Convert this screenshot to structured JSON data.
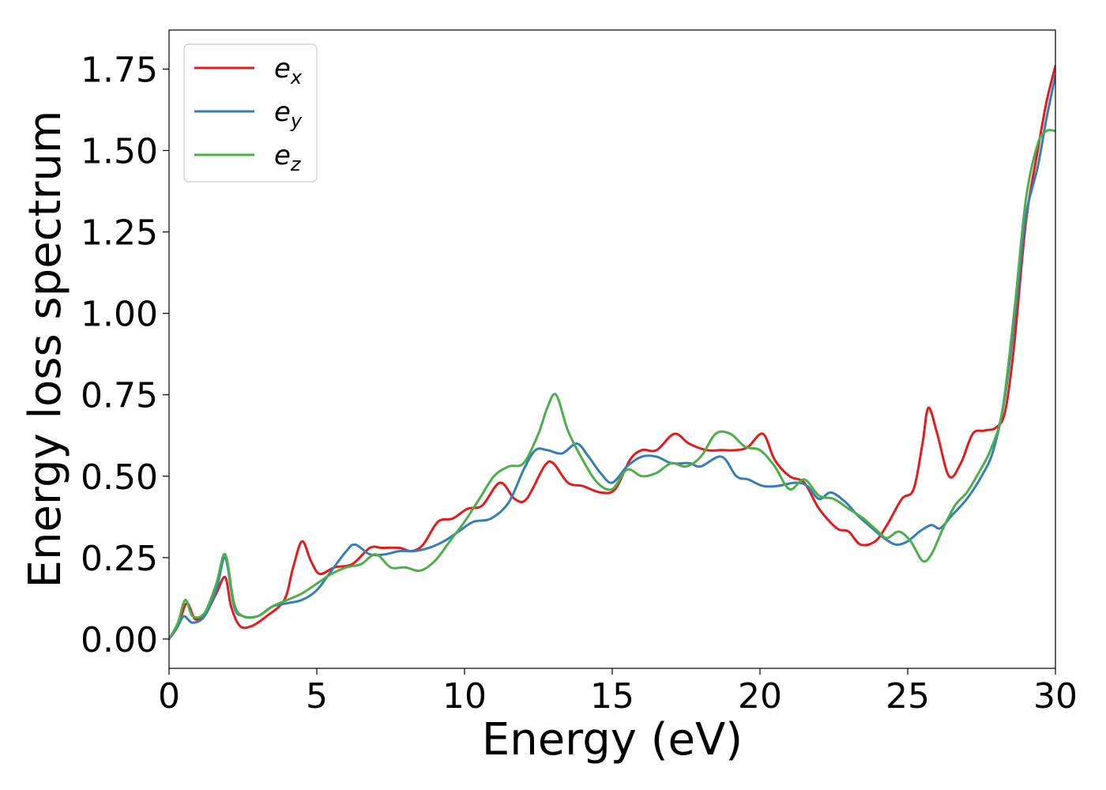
{
  "chart_data": {
    "type": "line",
    "title": "",
    "xlabel": "Energy (eV)",
    "ylabel": "Energy loss spectrum",
    "xlim": [
      0,
      30
    ],
    "ylim": [
      -0.09,
      1.87
    ],
    "xticks": [
      0,
      5,
      10,
      15,
      20,
      25,
      30
    ],
    "xtick_labels": [
      "0",
      "5",
      "10",
      "15",
      "20",
      "25",
      "30"
    ],
    "yticks": [
      0.0,
      0.25,
      0.5,
      0.75,
      1.0,
      1.25,
      1.5,
      1.75
    ],
    "ytick_labels": [
      "0.00",
      "0.25",
      "0.50",
      "0.75",
      "1.00",
      "1.25",
      "1.50",
      "1.75"
    ],
    "grid": false,
    "legend": "top-left",
    "series": [
      {
        "name": "e",
        "subscript": "x",
        "color": "#e41a1c",
        "points": [
          [
            0,
            0
          ],
          [
            0.3,
            0.04
          ],
          [
            0.6,
            0.11
          ],
          [
            0.9,
            0.06
          ],
          [
            1.3,
            0.09
          ],
          [
            1.6,
            0.14
          ],
          [
            1.9,
            0.19
          ],
          [
            2.1,
            0.1
          ],
          [
            2.4,
            0.04
          ],
          [
            2.8,
            0.04
          ],
          [
            3.3,
            0.07
          ],
          [
            3.9,
            0.12
          ],
          [
            4.2,
            0.22
          ],
          [
            4.5,
            0.3
          ],
          [
            4.8,
            0.24
          ],
          [
            5.1,
            0.2
          ],
          [
            5.6,
            0.22
          ],
          [
            6.2,
            0.23
          ],
          [
            6.8,
            0.28
          ],
          [
            7.2,
            0.28
          ],
          [
            7.8,
            0.28
          ],
          [
            8.2,
            0.27
          ],
          [
            8.6,
            0.29
          ],
          [
            9.1,
            0.36
          ],
          [
            9.6,
            0.37
          ],
          [
            10.1,
            0.4
          ],
          [
            10.6,
            0.41
          ],
          [
            11.2,
            0.48
          ],
          [
            11.7,
            0.43
          ],
          [
            12.1,
            0.43
          ],
          [
            12.7,
            0.53
          ],
          [
            13.0,
            0.54
          ],
          [
            13.5,
            0.48
          ],
          [
            14.0,
            0.47
          ],
          [
            14.6,
            0.45
          ],
          [
            15.1,
            0.46
          ],
          [
            15.6,
            0.55
          ],
          [
            16.0,
            0.58
          ],
          [
            16.5,
            0.58
          ],
          [
            17.1,
            0.63
          ],
          [
            17.6,
            0.6
          ],
          [
            18.2,
            0.58
          ],
          [
            18.7,
            0.58
          ],
          [
            19.2,
            0.58
          ],
          [
            19.6,
            0.59
          ],
          [
            20.1,
            0.63
          ],
          [
            20.5,
            0.55
          ],
          [
            21.0,
            0.5
          ],
          [
            21.5,
            0.48
          ],
          [
            22.0,
            0.4
          ],
          [
            22.6,
            0.34
          ],
          [
            23.0,
            0.33
          ],
          [
            23.4,
            0.29
          ],
          [
            23.9,
            0.3
          ],
          [
            24.3,
            0.35
          ],
          [
            24.8,
            0.43
          ],
          [
            25.2,
            0.46
          ],
          [
            25.5,
            0.6
          ],
          [
            25.7,
            0.71
          ],
          [
            26.0,
            0.63
          ],
          [
            26.4,
            0.5
          ],
          [
            26.8,
            0.54
          ],
          [
            27.2,
            0.63
          ],
          [
            27.6,
            0.64
          ],
          [
            28.0,
            0.65
          ],
          [
            28.3,
            0.7
          ],
          [
            28.6,
            0.9
          ],
          [
            29.0,
            1.28
          ],
          [
            29.4,
            1.5
          ],
          [
            29.7,
            1.65
          ],
          [
            30.0,
            1.76
          ]
        ]
      },
      {
        "name": "e",
        "subscript": "y",
        "color": "#377eb8",
        "points": [
          [
            0,
            0
          ],
          [
            0.3,
            0.04
          ],
          [
            0.5,
            0.07
          ],
          [
            0.8,
            0.05
          ],
          [
            1.2,
            0.07
          ],
          [
            1.6,
            0.15
          ],
          [
            1.9,
            0.25
          ],
          [
            2.2,
            0.1
          ],
          [
            2.5,
            0.07
          ],
          [
            3.0,
            0.07
          ],
          [
            3.5,
            0.1
          ],
          [
            4.0,
            0.11
          ],
          [
            4.5,
            0.12
          ],
          [
            5.0,
            0.15
          ],
          [
            5.5,
            0.21
          ],
          [
            6.0,
            0.27
          ],
          [
            6.3,
            0.29
          ],
          [
            6.8,
            0.26
          ],
          [
            7.3,
            0.26
          ],
          [
            7.8,
            0.27
          ],
          [
            8.3,
            0.27
          ],
          [
            8.8,
            0.28
          ],
          [
            9.3,
            0.3
          ],
          [
            9.8,
            0.33
          ],
          [
            10.3,
            0.36
          ],
          [
            10.9,
            0.37
          ],
          [
            11.5,
            0.42
          ],
          [
            12.0,
            0.52
          ],
          [
            12.4,
            0.58
          ],
          [
            12.8,
            0.58
          ],
          [
            13.3,
            0.57
          ],
          [
            13.8,
            0.6
          ],
          [
            14.2,
            0.56
          ],
          [
            14.6,
            0.51
          ],
          [
            15.0,
            0.48
          ],
          [
            15.5,
            0.53
          ],
          [
            16.0,
            0.56
          ],
          [
            16.5,
            0.56
          ],
          [
            17.0,
            0.54
          ],
          [
            17.6,
            0.54
          ],
          [
            18.0,
            0.53
          ],
          [
            18.7,
            0.56
          ],
          [
            19.2,
            0.5
          ],
          [
            19.6,
            0.49
          ],
          [
            20.1,
            0.47
          ],
          [
            20.6,
            0.47
          ],
          [
            21.2,
            0.48
          ],
          [
            21.6,
            0.47
          ],
          [
            22.0,
            0.43
          ],
          [
            22.4,
            0.45
          ],
          [
            22.9,
            0.42
          ],
          [
            23.3,
            0.38
          ],
          [
            23.8,
            0.34
          ],
          [
            24.2,
            0.31
          ],
          [
            24.6,
            0.29
          ],
          [
            25.0,
            0.3
          ],
          [
            25.4,
            0.33
          ],
          [
            25.8,
            0.35
          ],
          [
            26.1,
            0.34
          ],
          [
            26.5,
            0.38
          ],
          [
            27.0,
            0.43
          ],
          [
            27.5,
            0.5
          ],
          [
            27.9,
            0.58
          ],
          [
            28.3,
            0.75
          ],
          [
            28.7,
            1.05
          ],
          [
            29.0,
            1.3
          ],
          [
            29.4,
            1.45
          ],
          [
            29.7,
            1.6
          ],
          [
            30.0,
            1.73
          ]
        ]
      },
      {
        "name": "e",
        "subscript": "z",
        "color": "#4daf4a",
        "points": [
          [
            0,
            0
          ],
          [
            0.3,
            0.05
          ],
          [
            0.55,
            0.12
          ],
          [
            0.8,
            0.07
          ],
          [
            1.2,
            0.08
          ],
          [
            1.6,
            0.17
          ],
          [
            1.9,
            0.26
          ],
          [
            2.2,
            0.11
          ],
          [
            2.5,
            0.07
          ],
          [
            3.0,
            0.07
          ],
          [
            3.5,
            0.1
          ],
          [
            4.0,
            0.12
          ],
          [
            4.5,
            0.14
          ],
          [
            5.0,
            0.17
          ],
          [
            5.5,
            0.2
          ],
          [
            6.0,
            0.22
          ],
          [
            6.5,
            0.23
          ],
          [
            7.0,
            0.26
          ],
          [
            7.5,
            0.22
          ],
          [
            8.0,
            0.22
          ],
          [
            8.5,
            0.21
          ],
          [
            9.0,
            0.24
          ],
          [
            9.5,
            0.3
          ],
          [
            10.0,
            0.36
          ],
          [
            10.5,
            0.43
          ],
          [
            11.0,
            0.5
          ],
          [
            11.5,
            0.53
          ],
          [
            12.0,
            0.54
          ],
          [
            12.5,
            0.63
          ],
          [
            12.8,
            0.71
          ],
          [
            13.1,
            0.75
          ],
          [
            13.5,
            0.64
          ],
          [
            14.0,
            0.55
          ],
          [
            14.5,
            0.48
          ],
          [
            15.0,
            0.46
          ],
          [
            15.5,
            0.52
          ],
          [
            16.0,
            0.5
          ],
          [
            16.5,
            0.51
          ],
          [
            17.0,
            0.54
          ],
          [
            17.5,
            0.53
          ],
          [
            18.0,
            0.56
          ],
          [
            18.5,
            0.63
          ],
          [
            19.0,
            0.63
          ],
          [
            19.5,
            0.59
          ],
          [
            20.0,
            0.58
          ],
          [
            20.5,
            0.53
          ],
          [
            21.0,
            0.46
          ],
          [
            21.5,
            0.49
          ],
          [
            22.0,
            0.44
          ],
          [
            22.5,
            0.43
          ],
          [
            23.0,
            0.4
          ],
          [
            23.5,
            0.37
          ],
          [
            24.0,
            0.33
          ],
          [
            24.3,
            0.31
          ],
          [
            24.7,
            0.33
          ],
          [
            25.1,
            0.3
          ],
          [
            25.5,
            0.24
          ],
          [
            25.8,
            0.26
          ],
          [
            26.2,
            0.34
          ],
          [
            26.6,
            0.41
          ],
          [
            27.0,
            0.45
          ],
          [
            27.4,
            0.51
          ],
          [
            27.8,
            0.58
          ],
          [
            28.2,
            0.7
          ],
          [
            28.6,
            1.0
          ],
          [
            29.0,
            1.35
          ],
          [
            29.4,
            1.52
          ],
          [
            29.7,
            1.56
          ],
          [
            30.0,
            1.56
          ]
        ]
      }
    ]
  }
}
